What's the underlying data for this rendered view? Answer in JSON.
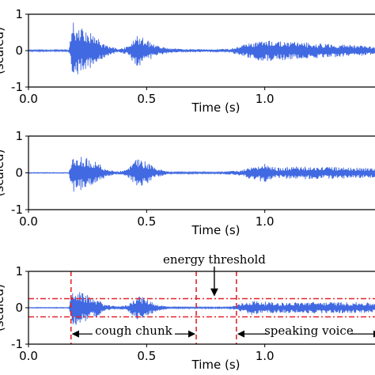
{
  "chart_data": [
    {
      "type": "line",
      "title": "",
      "xlabel": "Time (s)",
      "ylabel": "(scaled)",
      "xlim": [
        0.0,
        1.5
      ],
      "ylim": [
        -1,
        1
      ],
      "x_ticks": [
        "0.0",
        "0.5",
        "1.0"
      ],
      "y_ticks": [
        "-1",
        "0",
        "1"
      ],
      "series": [
        {
          "color": "#4169e1",
          "envelope": [
            {
              "x": 0.0,
              "amp": 0.02
            },
            {
              "x": 0.17,
              "amp": 0.02
            },
            {
              "x": 0.19,
              "amp": 0.8
            },
            {
              "x": 0.21,
              "amp": 0.65
            },
            {
              "x": 0.25,
              "amp": 0.55
            },
            {
              "x": 0.3,
              "amp": 0.3
            },
            {
              "x": 0.33,
              "amp": 0.15
            },
            {
              "x": 0.38,
              "amp": 0.05
            },
            {
              "x": 0.42,
              "amp": 0.12
            },
            {
              "x": 0.46,
              "amp": 0.45
            },
            {
              "x": 0.5,
              "amp": 0.3
            },
            {
              "x": 0.54,
              "amp": 0.15
            },
            {
              "x": 0.6,
              "amp": 0.06
            },
            {
              "x": 0.7,
              "amp": 0.04
            },
            {
              "x": 0.85,
              "amp": 0.05
            },
            {
              "x": 0.9,
              "amp": 0.14
            },
            {
              "x": 0.95,
              "amp": 0.25
            },
            {
              "x": 1.0,
              "amp": 0.3
            },
            {
              "x": 1.1,
              "amp": 0.25
            },
            {
              "x": 1.25,
              "amp": 0.2
            },
            {
              "x": 1.4,
              "amp": 0.15
            },
            {
              "x": 1.5,
              "amp": 0.1
            }
          ]
        }
      ]
    },
    {
      "type": "line",
      "title": "",
      "xlabel": "Time (s)",
      "ylabel": "(scaled)",
      "xlim": [
        0.0,
        1.5
      ],
      "ylim": [
        -1,
        1
      ],
      "x_ticks": [
        "0.0",
        "0.5",
        "1.0"
      ],
      "y_ticks": [
        "-1",
        "0",
        "1"
      ],
      "series": [
        {
          "color": "#4169e1",
          "envelope": [
            {
              "x": 0.0,
              "amp": 0.01
            },
            {
              "x": 0.17,
              "amp": 0.01
            },
            {
              "x": 0.19,
              "amp": 0.6
            },
            {
              "x": 0.21,
              "amp": 0.5
            },
            {
              "x": 0.25,
              "amp": 0.4
            },
            {
              "x": 0.3,
              "amp": 0.25
            },
            {
              "x": 0.33,
              "amp": 0.1
            },
            {
              "x": 0.38,
              "amp": 0.04
            },
            {
              "x": 0.42,
              "amp": 0.1
            },
            {
              "x": 0.46,
              "amp": 0.4
            },
            {
              "x": 0.5,
              "amp": 0.3
            },
            {
              "x": 0.54,
              "amp": 0.12
            },
            {
              "x": 0.6,
              "amp": 0.03
            },
            {
              "x": 0.8,
              "amp": 0.02
            },
            {
              "x": 0.9,
              "amp": 0.08
            },
            {
              "x": 0.95,
              "amp": 0.2
            },
            {
              "x": 1.0,
              "amp": 0.25
            },
            {
              "x": 1.05,
              "amp": 0.15
            },
            {
              "x": 1.15,
              "amp": 0.18
            },
            {
              "x": 1.3,
              "amp": 0.16
            },
            {
              "x": 1.5,
              "amp": 0.12
            }
          ]
        }
      ]
    },
    {
      "type": "line",
      "title": "",
      "xlabel": "Time (s)",
      "ylabel": "(scaled)",
      "xlim": [
        0.0,
        1.5
      ],
      "ylim": [
        -1,
        1
      ],
      "x_ticks": [
        "0.0",
        "0.5",
        "1.0"
      ],
      "y_ticks": [
        "-1",
        "0",
        "1"
      ],
      "series": [
        {
          "color": "#4169e1",
          "envelope": [
            {
              "x": 0.0,
              "amp": 0.01
            },
            {
              "x": 0.17,
              "amp": 0.01
            },
            {
              "x": 0.19,
              "amp": 0.55
            },
            {
              "x": 0.21,
              "amp": 0.45
            },
            {
              "x": 0.25,
              "amp": 0.35
            },
            {
              "x": 0.3,
              "amp": 0.2
            },
            {
              "x": 0.33,
              "amp": 0.08
            },
            {
              "x": 0.38,
              "amp": 0.03
            },
            {
              "x": 0.42,
              "amp": 0.08
            },
            {
              "x": 0.46,
              "amp": 0.35
            },
            {
              "x": 0.5,
              "amp": 0.25
            },
            {
              "x": 0.54,
              "amp": 0.1
            },
            {
              "x": 0.6,
              "amp": 0.02
            },
            {
              "x": 0.85,
              "amp": 0.02
            },
            {
              "x": 0.9,
              "amp": 0.12
            },
            {
              "x": 0.95,
              "amp": 0.2
            },
            {
              "x": 1.05,
              "amp": 0.14
            },
            {
              "x": 1.2,
              "amp": 0.16
            },
            {
              "x": 1.4,
              "amp": 0.15
            },
            {
              "x": 1.5,
              "amp": 0.12
            }
          ]
        }
      ],
      "threshold": {
        "y": 0.25,
        "color": "#e3242b",
        "label": "energy threshold",
        "arrow_x": 0.8
      },
      "segment_markers": [
        0.18,
        0.71,
        0.88
      ],
      "annotations": [
        {
          "label": "cough chunk",
          "from": 0.18,
          "to": 0.71,
          "y": -0.72
        },
        {
          "label": "speaking voice",
          "from": 0.88,
          "to": 1.5,
          "y": -0.72
        }
      ]
    }
  ]
}
